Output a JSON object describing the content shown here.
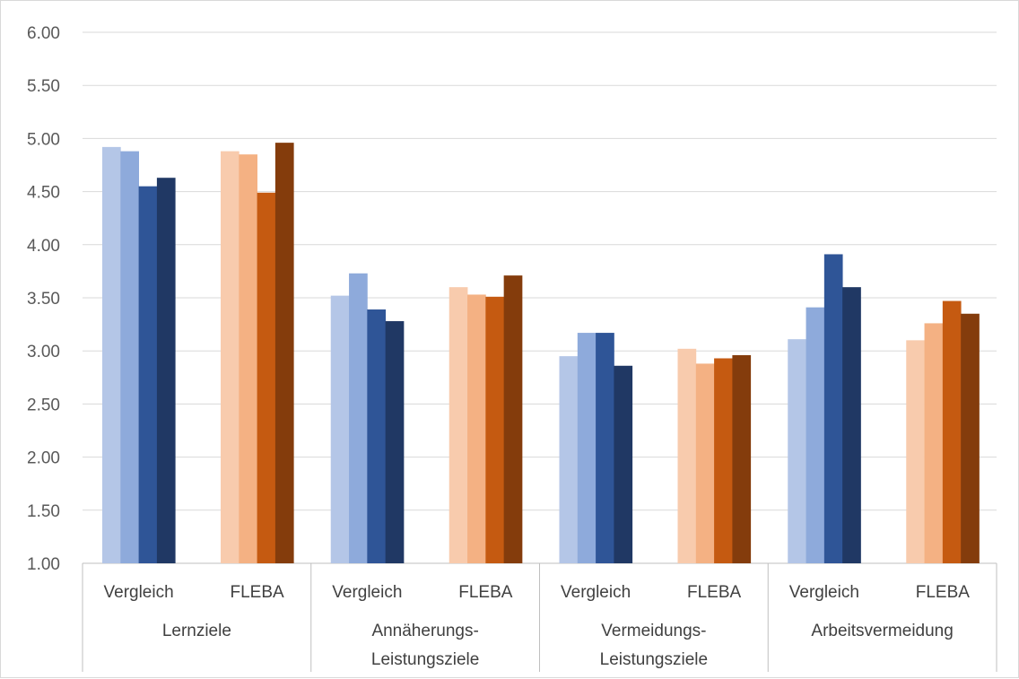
{
  "chart_data": {
    "type": "bar",
    "ylim": [
      1,
      6
    ],
    "ytick_step": 0.5,
    "ytick_labels": [
      "1.00",
      "1.50",
      "2.00",
      "2.50",
      "3.00",
      "3.50",
      "4.00",
      "4.50",
      "5.00",
      "5.50",
      "6.00"
    ],
    "grid": true,
    "groups": [
      {
        "label": "Lernziele",
        "subgroups": [
          {
            "label": "Vergleich",
            "palette": "blue",
            "values": [
              4.92,
              4.88,
              4.55,
              4.63
            ]
          },
          {
            "label": "FLEBA",
            "palette": "orange",
            "values": [
              4.88,
              4.85,
              4.49,
              4.96
            ]
          }
        ]
      },
      {
        "label": "Annäherungs-\nLeistungsziele",
        "subgroups": [
          {
            "label": "Vergleich",
            "palette": "blue",
            "values": [
              3.52,
              3.73,
              3.39,
              3.28
            ]
          },
          {
            "label": "FLEBA",
            "palette": "orange",
            "values": [
              3.6,
              3.53,
              3.51,
              3.71
            ]
          }
        ]
      },
      {
        "label": "Vermeidungs-\nLeistungsziele",
        "subgroups": [
          {
            "label": "Vergleich",
            "palette": "blue",
            "values": [
              2.95,
              3.17,
              3.17,
              2.86
            ]
          },
          {
            "label": "FLEBA",
            "palette": "orange",
            "values": [
              3.02,
              2.88,
              2.93,
              2.96
            ]
          }
        ]
      },
      {
        "label": "Arbeitsvermeidung",
        "subgroups": [
          {
            "label": "Vergleich",
            "palette": "blue",
            "values": [
              3.11,
              3.41,
              3.91,
              3.6
            ]
          },
          {
            "label": "FLEBA",
            "palette": "orange",
            "values": [
              3.1,
              3.26,
              3.47,
              3.35
            ]
          }
        ]
      }
    ],
    "colors": {
      "blue": [
        "#b4c6e7",
        "#8eaadb",
        "#2f5597",
        "#203864"
      ],
      "orange": [
        "#f8cbad",
        "#f4b183",
        "#c55a11",
        "#843c0c"
      ],
      "grid": "#d9d9d9",
      "axis": "#bfbfbf"
    }
  }
}
